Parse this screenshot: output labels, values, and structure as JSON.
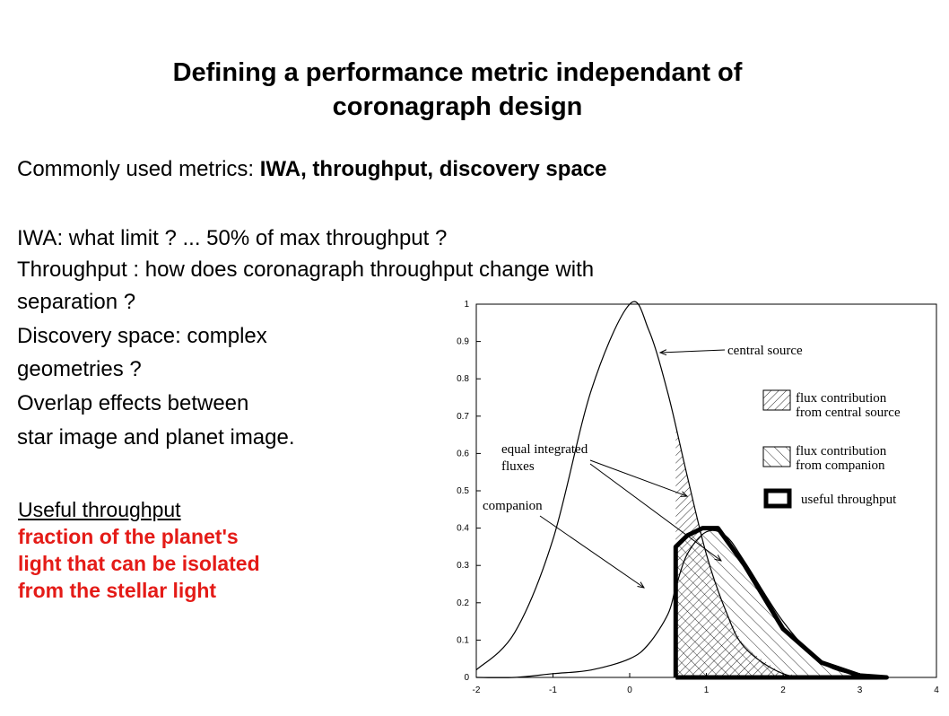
{
  "title": {
    "line1": "Defining a performance metric independant of",
    "line2": "coronagraph design"
  },
  "metrics": {
    "prefix": "Commonly used metrics: ",
    "items": "IWA, throughput, discovery space"
  },
  "lines": {
    "iwa": "IWA: what limit ? ... 50% of max throughput ?",
    "throughput1": "Throughput : how does coronagraph throughput change with",
    "throughput2": "separation ?",
    "discovery1": "Discovery space: complex",
    "discovery2": "geometries ?",
    "overlap1": "Overlap effects between",
    "overlap2": "star image and planet image."
  },
  "useful": {
    "heading": "Useful throughput",
    "line1": "fraction of the planet's",
    "line2": "light that can be isolated",
    "line3": "from the stellar light"
  },
  "colors": {
    "red_text": "#e41b17"
  },
  "chart_data": {
    "type": "line",
    "xlim": [
      -2,
      4
    ],
    "ylim": [
      0,
      1
    ],
    "x_ticks": [
      "-2",
      "-1",
      "0",
      "1",
      "2",
      "3",
      "4"
    ],
    "y_ticks": [
      "0",
      "0.1",
      "0.2",
      "0.3",
      "0.4",
      "0.5",
      "0.6",
      "0.7",
      "0.8",
      "0.9",
      "1"
    ],
    "series": [
      {
        "name": "central source",
        "x": [
          -2,
          -1.5,
          -1,
          -0.5,
          0,
          0.25,
          0.5,
          0.75,
          1.0,
          1.25,
          1.5,
          2,
          2.5,
          3
        ],
        "y": [
          0.02,
          0.12,
          0.37,
          0.77,
          1.0,
          0.93,
          0.76,
          0.54,
          0.33,
          0.18,
          0.08,
          0.01,
          0.0,
          0.0
        ]
      },
      {
        "name": "companion",
        "x": [
          -2,
          -1.5,
          -1,
          -0.5,
          0,
          0.25,
          0.5,
          0.6,
          0.75,
          1.0,
          1.25,
          1.5,
          2,
          2.5,
          3,
          3.35
        ],
        "y": [
          0.0,
          0.0,
          0.01,
          0.02,
          0.05,
          0.09,
          0.17,
          0.24,
          0.33,
          0.39,
          0.38,
          0.31,
          0.15,
          0.04,
          0.005,
          0.0
        ]
      },
      {
        "name": "useful throughput",
        "x": [
          0.6,
          0.6,
          0.75,
          0.95,
          1.15,
          1.5,
          2.0,
          2.5,
          3.0,
          3.35,
          3.35,
          0.6
        ],
        "y": [
          0.0,
          0.35,
          0.38,
          0.4,
          0.4,
          0.3,
          0.13,
          0.04,
          0.005,
          0.0,
          0.0,
          0.0
        ]
      }
    ],
    "annotations": {
      "central_source": "central source",
      "equal_line1": "equal integrated",
      "equal_line2": "fluxes",
      "companion": "companion"
    },
    "legend": {
      "central_1": "flux contribution",
      "central_2": "from central source",
      "companion_1": "flux contribution",
      "companion_2": "from companion",
      "useful": "useful throughput"
    }
  }
}
